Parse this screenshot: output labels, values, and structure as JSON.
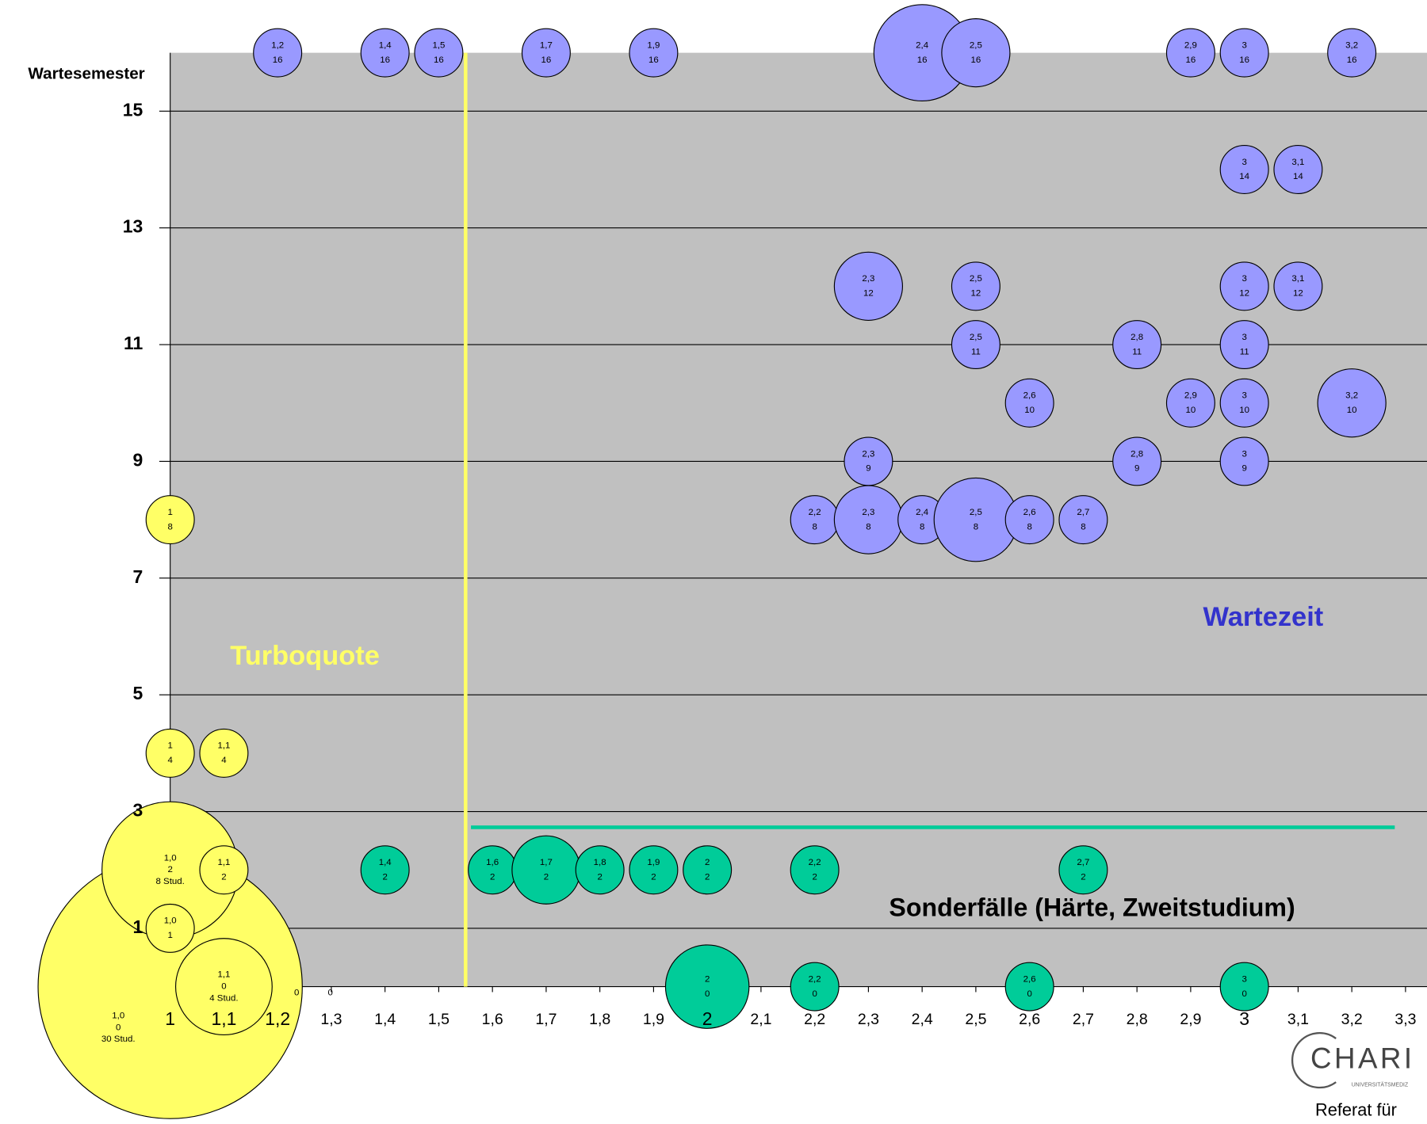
{
  "chart_data": {
    "type": "bubble",
    "y_label": "Wartesemester",
    "xlim": [
      1,
      3.34
    ],
    "ylim": [
      0,
      16
    ],
    "xticks": [
      {
        "value": 1,
        "label": "1"
      },
      {
        "value": 1.1,
        "label": "1,1"
      },
      {
        "value": 1.2,
        "label": "1,2"
      },
      {
        "value": 1.3,
        "label": "1,3"
      },
      {
        "value": 1.4,
        "label": "1,4"
      },
      {
        "value": 1.5,
        "label": "1,5"
      },
      {
        "value": 1.6,
        "label": "1,6"
      },
      {
        "value": 1.7,
        "label": "1,7"
      },
      {
        "value": 1.8,
        "label": "1,8"
      },
      {
        "value": 1.9,
        "label": "1,9"
      },
      {
        "value": 2,
        "label": "2"
      },
      {
        "value": 2.1,
        "label": "2,1"
      },
      {
        "value": 2.2,
        "label": "2,2"
      },
      {
        "value": 2.3,
        "label": "2,3"
      },
      {
        "value": 2.4,
        "label": "2,4"
      },
      {
        "value": 2.5,
        "label": "2,5"
      },
      {
        "value": 2.6,
        "label": "2,6"
      },
      {
        "value": 2.7,
        "label": "2,7"
      },
      {
        "value": 2.8,
        "label": "2,8"
      },
      {
        "value": 2.9,
        "label": "2,9"
      },
      {
        "value": 3,
        "label": "3"
      },
      {
        "value": 3.1,
        "label": "3,1"
      },
      {
        "value": 3.2,
        "label": "3,2"
      },
      {
        "value": 3.3,
        "label": "3,3"
      }
    ],
    "yticks": [
      1,
      3,
      5,
      7,
      9,
      11,
      13,
      15
    ],
    "grid": true,
    "series": [
      {
        "name": "Wartezeit",
        "color": "#9999ff",
        "label_color": "#3333cc",
        "x": [
          1.2,
          1.4,
          1.5,
          1.7,
          1.9,
          2.4,
          2.5,
          2.9,
          3,
          3.2,
          3,
          3.1,
          2.3,
          2.5,
          3,
          3.1,
          2.5,
          2.8,
          3,
          2.6,
          2.9,
          3,
          3.2,
          2.3,
          2.8,
          3,
          2.2,
          2.3,
          2.4,
          2.5,
          2.6,
          2.7
        ],
        "y": [
          16,
          16,
          16,
          16,
          16,
          16,
          16,
          16,
          16,
          16,
          14,
          14,
          12,
          12,
          12,
          12,
          11,
          11,
          11,
          10,
          10,
          10,
          10,
          9,
          9,
          9,
          8,
          8,
          8,
          8,
          8,
          8
        ],
        "size": [
          1,
          1,
          1,
          1,
          1,
          4,
          2,
          1,
          1,
          1,
          1,
          1,
          2,
          1,
          1,
          1,
          1,
          1,
          1,
          1,
          1,
          1,
          2,
          1,
          1,
          1,
          1,
          2,
          1,
          3,
          1,
          1
        ],
        "x_labels": [
          "1,2",
          "1,4",
          "1,5",
          "1,7",
          "1,9",
          "2,4",
          "2,5",
          "2,9",
          "3",
          "3,2",
          "3",
          "3,1",
          "2,3",
          "2,5",
          "3",
          "3,1",
          "2,5",
          "2,8",
          "3",
          "2,6",
          "2,9",
          "3",
          "3,2",
          "2,3",
          "2,8",
          "3",
          "2,2",
          "2,3",
          "2,4",
          "2,5",
          "2,6",
          "2,7"
        ]
      },
      {
        "name": "Turboquote",
        "color": "#ffff66",
        "label_color": "#ffff66",
        "x": [
          1,
          1,
          1.1,
          1,
          1.1,
          1,
          1.1,
          1
        ],
        "y": [
          0,
          2,
          2,
          1,
          0,
          4,
          4,
          8
        ],
        "size": [
          30,
          8,
          1,
          1,
          4,
          1,
          1,
          1
        ],
        "x_labels": [
          "1,0",
          "1,0",
          "1,1",
          "1,0",
          "1,1",
          "1",
          "1,1",
          "1"
        ],
        "size_labels": [
          "30 Stud.",
          "8 Stud.",
          null,
          null,
          "4 Stud.",
          null,
          null,
          null
        ]
      },
      {
        "name": "Sonderfälle (Härte, Zweitstudium)",
        "color": "#00cc99",
        "label_color": "#000000",
        "x": [
          1.4,
          1.6,
          1.7,
          1.8,
          1.9,
          2,
          2.2,
          2.7,
          2,
          2.2,
          2.6,
          3
        ],
        "y": [
          2,
          2,
          2,
          2,
          2,
          2,
          2,
          2,
          0,
          0,
          0,
          0
        ],
        "size": [
          1,
          1,
          2,
          1,
          1,
          1,
          1,
          1,
          3,
          1,
          1,
          1
        ],
        "x_labels": [
          "1,4",
          "1,6",
          "1,7",
          "1,8",
          "1,9",
          "2",
          "2,2",
          "2,7",
          "2",
          "2,2",
          "2,6",
          "3"
        ]
      }
    ],
    "vline": {
      "x": 1.55,
      "color": "#ffff66"
    },
    "hline": {
      "y": 2.73,
      "x": [
        1.56,
        3.28
      ],
      "color": "#00cc99"
    },
    "extra_labels": [
      "0",
      "0"
    ]
  },
  "logo": {
    "name": "CHARI",
    "sub": "UNIVERSITÄTSMEDIZ",
    "footer": "Referat für"
  }
}
